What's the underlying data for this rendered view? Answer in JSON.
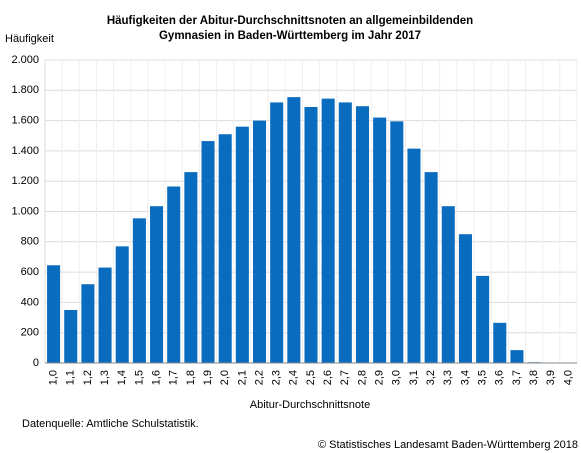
{
  "chart_data": {
    "type": "bar",
    "title": "Häufigkeiten der Abitur-Durchschnittsnoten an allgemeinbildenden Gymnasien in Baden-Württemberg im Jahr 2017",
    "y_label": "Häufigkeit",
    "x_label": "Abitur-Durchschnittsnote",
    "source": "Datenquelle: Amtliche Schulstatistik.",
    "copyright": "© Statistisches Landesamt Baden-Württemberg 2018",
    "categories": [
      "1,0",
      "1,1",
      "1,2",
      "1,3",
      "1,4",
      "1,5",
      "1,6",
      "1,7",
      "1,8",
      "1,9",
      "2,0",
      "2,1",
      "2,2",
      "2,3",
      "2,4",
      "2,5",
      "2,6",
      "2,7",
      "2,8",
      "2,9",
      "3,0",
      "3,1",
      "3,2",
      "3,3",
      "3,4",
      "3,5",
      "3,6",
      "3,7",
      "3,8",
      "3,9",
      "4,0"
    ],
    "values": [
      645,
      350,
      520,
      630,
      770,
      955,
      1035,
      1165,
      1260,
      1465,
      1510,
      1560,
      1600,
      1720,
      1755,
      1690,
      1745,
      1720,
      1695,
      1620,
      1595,
      1415,
      1260,
      1035,
      850,
      575,
      265,
      85,
      5,
      0,
      0
    ],
    "color": "#0a6cbf",
    "ylim": [
      0,
      2000
    ],
    "yticks": [
      0,
      200,
      400,
      600,
      800,
      {
        "value": 1000,
        "label": "1.000"
      },
      {
        "value": 1200,
        "label": "1.200"
      },
      {
        "value": 1400,
        "label": "1.400"
      },
      {
        "value": 1600,
        "label": "1.600"
      },
      {
        "value": 1800,
        "label": "1.800"
      },
      {
        "value": 2000,
        "label": "2.000"
      }
    ],
    "grid": true
  }
}
